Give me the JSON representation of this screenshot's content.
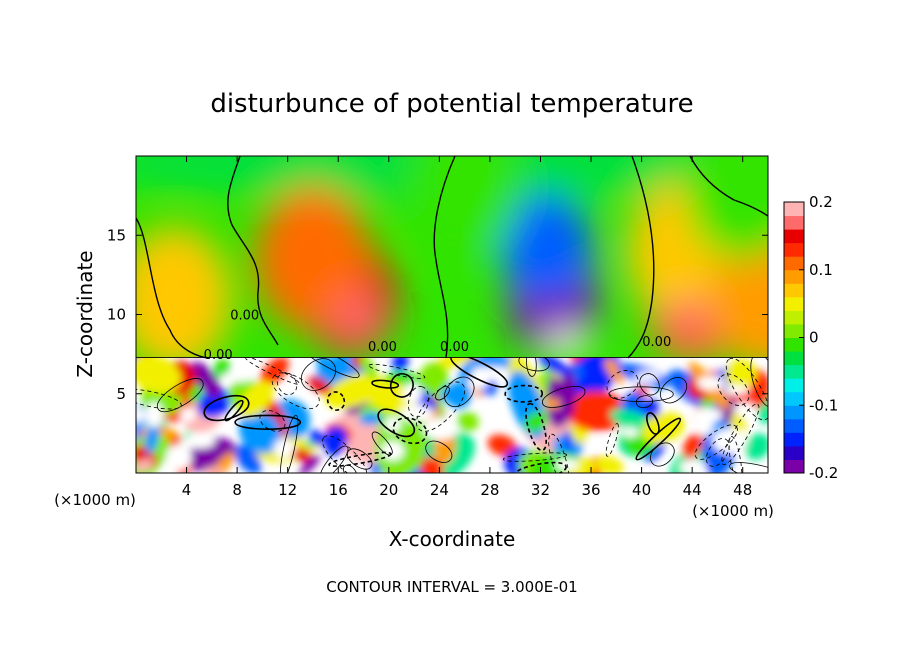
{
  "chart_data": {
    "type": "heatmap",
    "title": "disturbunce of potential temperature",
    "xlabel": "X-coordinate",
    "ylabel": "Z-coordinate",
    "x_unit_left": "(×1000 m)",
    "x_unit_right": "(×1000 m)",
    "xlim": [
      0,
      50
    ],
    "ylim": [
      0,
      20
    ],
    "x_ticks": [
      4,
      8,
      12,
      16,
      20,
      24,
      28,
      32,
      36,
      40,
      44,
      48
    ],
    "y_ticks": [
      5,
      10,
      15
    ],
    "colorbar": {
      "range": [
        -0.2,
        0.2
      ],
      "labels": [
        {
          "value": 0.2,
          "text": "0.2"
        },
        {
          "value": 0.1,
          "text": "0.1"
        },
        {
          "value": 0.0,
          "text": "0"
        },
        {
          "value": -0.1,
          "text": "-0.1"
        },
        {
          "value": -0.2,
          "text": "-0.2"
        }
      ],
      "colors": [
        "#7a00a8",
        "#2a00c8",
        "#0022ff",
        "#005dff",
        "#0096ff",
        "#00c8ff",
        "#00f0e8",
        "#00e890",
        "#00e040",
        "#30e400",
        "#80ea00",
        "#c0f000",
        "#f2f000",
        "#ffc800",
        "#ff9c00",
        "#ff6a00",
        "#ff2a00",
        "#e80000",
        "#ff6a6a",
        "#ffb4b4"
      ]
    },
    "contour_interval": "CONTOUR INTERVAL = 3.000E-01",
    "contour_labels": [
      "0.00",
      "0.00",
      "0.00",
      "0.00",
      "0.00"
    ],
    "features": [
      {
        "name": "warm-anomaly",
        "x": 17,
        "z": 11,
        "value": 0.15
      },
      {
        "name": "warm-anomaly",
        "x": 14,
        "z": 13.5,
        "value": 0.1
      },
      {
        "name": "cold-anomaly",
        "x": 33,
        "z": 11,
        "value": -0.2
      },
      {
        "name": "cold-anomaly",
        "x": 32.5,
        "z": 14,
        "value": -0.13
      },
      {
        "name": "warm-anomaly",
        "x": 44,
        "z": 10.5,
        "value": 0.12
      },
      {
        "name": "warm-anomaly",
        "x": 43.5,
        "z": 14,
        "value": 0.06
      },
      {
        "name": "warm-anomaly",
        "x": 3,
        "z": 11,
        "value": 0.07
      },
      {
        "name": "warm-anomaly",
        "x": 50,
        "z": 11,
        "value": 0.08
      },
      {
        "name": "cold-anomaly",
        "x": 26,
        "z": 18,
        "value": -0.02
      },
      {
        "name": "cold-anomaly",
        "x": 48,
        "z": 18,
        "value": -0.02
      }
    ]
  }
}
